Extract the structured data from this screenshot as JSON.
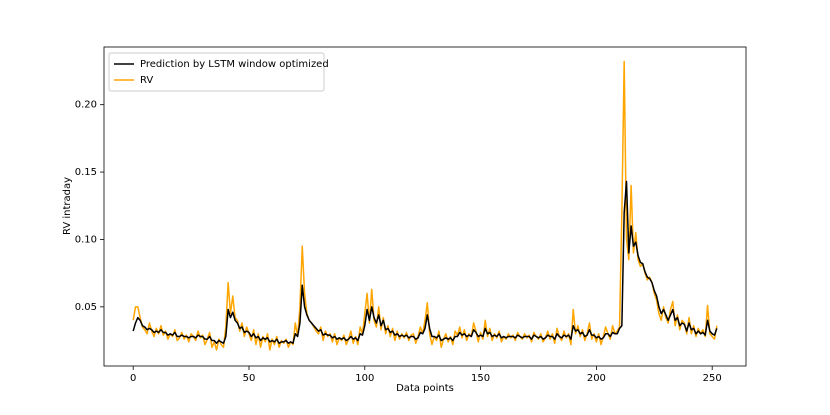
{
  "chart_data": {
    "type": "line",
    "xlabel": "Data points",
    "ylabel": "RV intraday",
    "x": [
      0,
      1,
      2,
      3,
      4,
      5,
      6,
      7,
      8,
      9,
      10,
      11,
      12,
      13,
      14,
      15,
      16,
      17,
      18,
      19,
      20,
      21,
      22,
      23,
      24,
      25,
      26,
      27,
      28,
      29,
      30,
      31,
      32,
      33,
      34,
      35,
      36,
      37,
      38,
      39,
      40,
      41,
      42,
      43,
      44,
      45,
      46,
      47,
      48,
      49,
      50,
      51,
      52,
      53,
      54,
      55,
      56,
      57,
      58,
      59,
      60,
      61,
      62,
      63,
      64,
      65,
      66,
      67,
      68,
      69,
      70,
      71,
      72,
      73,
      74,
      75,
      76,
      77,
      78,
      79,
      80,
      81,
      82,
      83,
      84,
      85,
      86,
      87,
      88,
      89,
      90,
      91,
      92,
      93,
      94,
      95,
      96,
      97,
      98,
      99,
      100,
      101,
      102,
      103,
      104,
      105,
      106,
      107,
      108,
      109,
      110,
      111,
      112,
      113,
      114,
      115,
      116,
      117,
      118,
      119,
      120,
      121,
      122,
      123,
      124,
      125,
      126,
      127,
      128,
      129,
      130,
      131,
      132,
      133,
      134,
      135,
      136,
      137,
      138,
      139,
      140,
      141,
      142,
      143,
      144,
      145,
      146,
      147,
      148,
      149,
      150,
      151,
      152,
      153,
      154,
      155,
      156,
      157,
      158,
      159,
      160,
      161,
      162,
      163,
      164,
      165,
      166,
      167,
      168,
      169,
      170,
      171,
      172,
      173,
      174,
      175,
      176,
      177,
      178,
      179,
      180,
      181,
      182,
      183,
      184,
      185,
      186,
      187,
      188,
      189,
      190,
      191,
      192,
      193,
      194,
      195,
      196,
      197,
      198,
      199,
      200,
      201,
      202,
      203,
      204,
      205,
      206,
      207,
      208,
      209,
      210,
      211,
      212,
      213,
      214,
      215,
      216,
      217,
      218,
      219,
      220,
      221,
      222,
      223,
      224,
      225,
      226,
      227,
      228,
      229,
      230,
      231,
      232,
      233,
      234,
      235,
      236,
      237,
      238,
      239,
      240,
      241,
      242,
      243,
      244,
      245,
      246,
      247,
      248,
      249,
      250,
      251,
      252
    ],
    "series": [
      {
        "name": "Prediction by LSTM window optimized",
        "color": "#000000",
        "values": [
          0.032,
          0.038,
          0.042,
          0.04,
          0.036,
          0.035,
          0.033,
          0.034,
          0.033,
          0.031,
          0.032,
          0.031,
          0.033,
          0.031,
          0.031,
          0.029,
          0.03,
          0.029,
          0.031,
          0.028,
          0.028,
          0.029,
          0.028,
          0.028,
          0.027,
          0.028,
          0.028,
          0.027,
          0.029,
          0.028,
          0.028,
          0.026,
          0.026,
          0.028,
          0.025,
          0.025,
          0.023,
          0.025,
          0.024,
          0.023,
          0.028,
          0.048,
          0.042,
          0.046,
          0.04,
          0.038,
          0.034,
          0.035,
          0.031,
          0.032,
          0.031,
          0.028,
          0.03,
          0.027,
          0.028,
          0.025,
          0.027,
          0.026,
          0.027,
          0.024,
          0.025,
          0.024,
          0.026,
          0.023,
          0.024,
          0.024,
          0.025,
          0.023,
          0.024,
          0.023,
          0.03,
          0.028,
          0.038,
          0.066,
          0.05,
          0.044,
          0.04,
          0.038,
          0.036,
          0.034,
          0.032,
          0.033,
          0.029,
          0.03,
          0.029,
          0.029,
          0.027,
          0.028,
          0.026,
          0.027,
          0.026,
          0.027,
          0.025,
          0.026,
          0.028,
          0.026,
          0.027,
          0.025,
          0.03,
          0.029,
          0.036,
          0.048,
          0.04,
          0.05,
          0.042,
          0.038,
          0.044,
          0.036,
          0.04,
          0.033,
          0.034,
          0.031,
          0.032,
          0.029,
          0.03,
          0.028,
          0.029,
          0.028,
          0.029,
          0.027,
          0.028,
          0.028,
          0.026,
          0.027,
          0.031,
          0.03,
          0.034,
          0.044,
          0.034,
          0.028,
          0.028,
          0.027,
          0.029,
          0.025,
          0.026,
          0.027,
          0.026,
          0.027,
          0.025,
          0.028,
          0.028,
          0.031,
          0.029,
          0.03,
          0.028,
          0.029,
          0.028,
          0.033,
          0.031,
          0.028,
          0.029,
          0.028,
          0.034,
          0.03,
          0.031,
          0.028,
          0.029,
          0.028,
          0.03,
          0.027,
          0.028,
          0.027,
          0.028,
          0.028,
          0.028,
          0.027,
          0.029,
          0.028,
          0.027,
          0.028,
          0.028,
          0.028,
          0.026,
          0.029,
          0.028,
          0.027,
          0.028,
          0.026,
          0.027,
          0.029,
          0.028,
          0.028,
          0.026,
          0.03,
          0.028,
          0.027,
          0.029,
          0.028,
          0.029,
          0.026,
          0.036,
          0.032,
          0.033,
          0.03,
          0.031,
          0.028,
          0.029,
          0.033,
          0.029,
          0.029,
          0.027,
          0.028,
          0.026,
          0.027,
          0.03,
          0.03,
          0.028,
          0.031,
          0.03,
          0.03,
          0.034,
          0.036,
          0.12,
          0.143,
          0.09,
          0.11,
          0.095,
          0.098,
          0.088,
          0.083,
          0.082,
          0.076,
          0.072,
          0.071,
          0.068,
          0.062,
          0.058,
          0.05,
          0.045,
          0.048,
          0.044,
          0.04,
          0.044,
          0.048,
          0.04,
          0.042,
          0.036,
          0.038,
          0.037,
          0.032,
          0.038,
          0.033,
          0.034,
          0.03,
          0.032,
          0.03,
          0.031,
          0.029,
          0.04,
          0.032,
          0.03,
          0.029,
          0.034
        ]
      },
      {
        "name": "RV",
        "color": "#ffa500",
        "values": [
          0.04,
          0.05,
          0.05,
          0.042,
          0.035,
          0.033,
          0.03,
          0.038,
          0.032,
          0.028,
          0.034,
          0.03,
          0.036,
          0.029,
          0.032,
          0.026,
          0.03,
          0.028,
          0.033,
          0.025,
          0.027,
          0.031,
          0.026,
          0.029,
          0.024,
          0.03,
          0.028,
          0.025,
          0.032,
          0.027,
          0.029,
          0.022,
          0.026,
          0.031,
          0.02,
          0.024,
          0.018,
          0.026,
          0.022,
          0.02,
          0.035,
          0.068,
          0.045,
          0.058,
          0.042,
          0.04,
          0.032,
          0.038,
          0.028,
          0.035,
          0.03,
          0.025,
          0.033,
          0.022,
          0.03,
          0.02,
          0.028,
          0.024,
          0.03,
          0.018,
          0.026,
          0.022,
          0.028,
          0.02,
          0.025,
          0.023,
          0.026,
          0.02,
          0.024,
          0.022,
          0.038,
          0.028,
          0.05,
          0.095,
          0.06,
          0.045,
          0.04,
          0.038,
          0.035,
          0.032,
          0.03,
          0.035,
          0.025,
          0.032,
          0.028,
          0.03,
          0.024,
          0.03,
          0.022,
          0.027,
          0.025,
          0.029,
          0.022,
          0.026,
          0.032,
          0.023,
          0.028,
          0.022,
          0.035,
          0.03,
          0.045,
          0.06,
          0.038,
          0.063,
          0.04,
          0.035,
          0.05,
          0.033,
          0.042,
          0.03,
          0.036,
          0.028,
          0.034,
          0.025,
          0.032,
          0.026,
          0.03,
          0.027,
          0.031,
          0.025,
          0.029,
          0.03,
          0.023,
          0.028,
          0.035,
          0.03,
          0.04,
          0.053,
          0.03,
          0.022,
          0.028,
          0.025,
          0.032,
          0.02,
          0.026,
          0.03,
          0.024,
          0.028,
          0.022,
          0.032,
          0.029,
          0.035,
          0.027,
          0.033,
          0.025,
          0.03,
          0.028,
          0.038,
          0.032,
          0.024,
          0.031,
          0.026,
          0.04,
          0.028,
          0.034,
          0.025,
          0.03,
          0.027,
          0.032,
          0.024,
          0.028,
          0.026,
          0.03,
          0.027,
          0.029,
          0.025,
          0.031,
          0.028,
          0.026,
          0.03,
          0.027,
          0.029,
          0.024,
          0.031,
          0.028,
          0.026,
          0.03,
          0.024,
          0.027,
          0.032,
          0.026,
          0.03,
          0.023,
          0.034,
          0.028,
          0.025,
          0.032,
          0.027,
          0.03,
          0.022,
          0.048,
          0.03,
          0.036,
          0.028,
          0.033,
          0.025,
          0.03,
          0.038,
          0.026,
          0.03,
          0.024,
          0.03,
          0.022,
          0.028,
          0.035,
          0.03,
          0.026,
          0.036,
          0.03,
          0.032,
          0.035,
          0.12,
          0.232,
          0.1,
          0.085,
          0.14,
          0.09,
          0.105,
          0.085,
          0.08,
          0.082,
          0.075,
          0.07,
          0.072,
          0.068,
          0.06,
          0.055,
          0.045,
          0.04,
          0.05,
          0.042,
          0.038,
          0.048,
          0.054,
          0.036,
          0.044,
          0.033,
          0.04,
          0.038,
          0.03,
          0.042,
          0.03,
          0.036,
          0.028,
          0.034,
          0.03,
          0.033,
          0.028,
          0.051,
          0.03,
          0.028,
          0.026,
          0.036
        ]
      }
    ],
    "xlim": [
      -12.6,
      264.6
    ],
    "ylim": [
      0.0061,
      0.2428
    ],
    "xticks": [
      0,
      50,
      100,
      150,
      200,
      250
    ],
    "yticks": [
      0.05,
      {
        "value": 0.1,
        "label": "0.10"
      },
      0.15,
      {
        "value": 0.2,
        "label": "0.20"
      }
    ],
    "legend": "upper left"
  }
}
